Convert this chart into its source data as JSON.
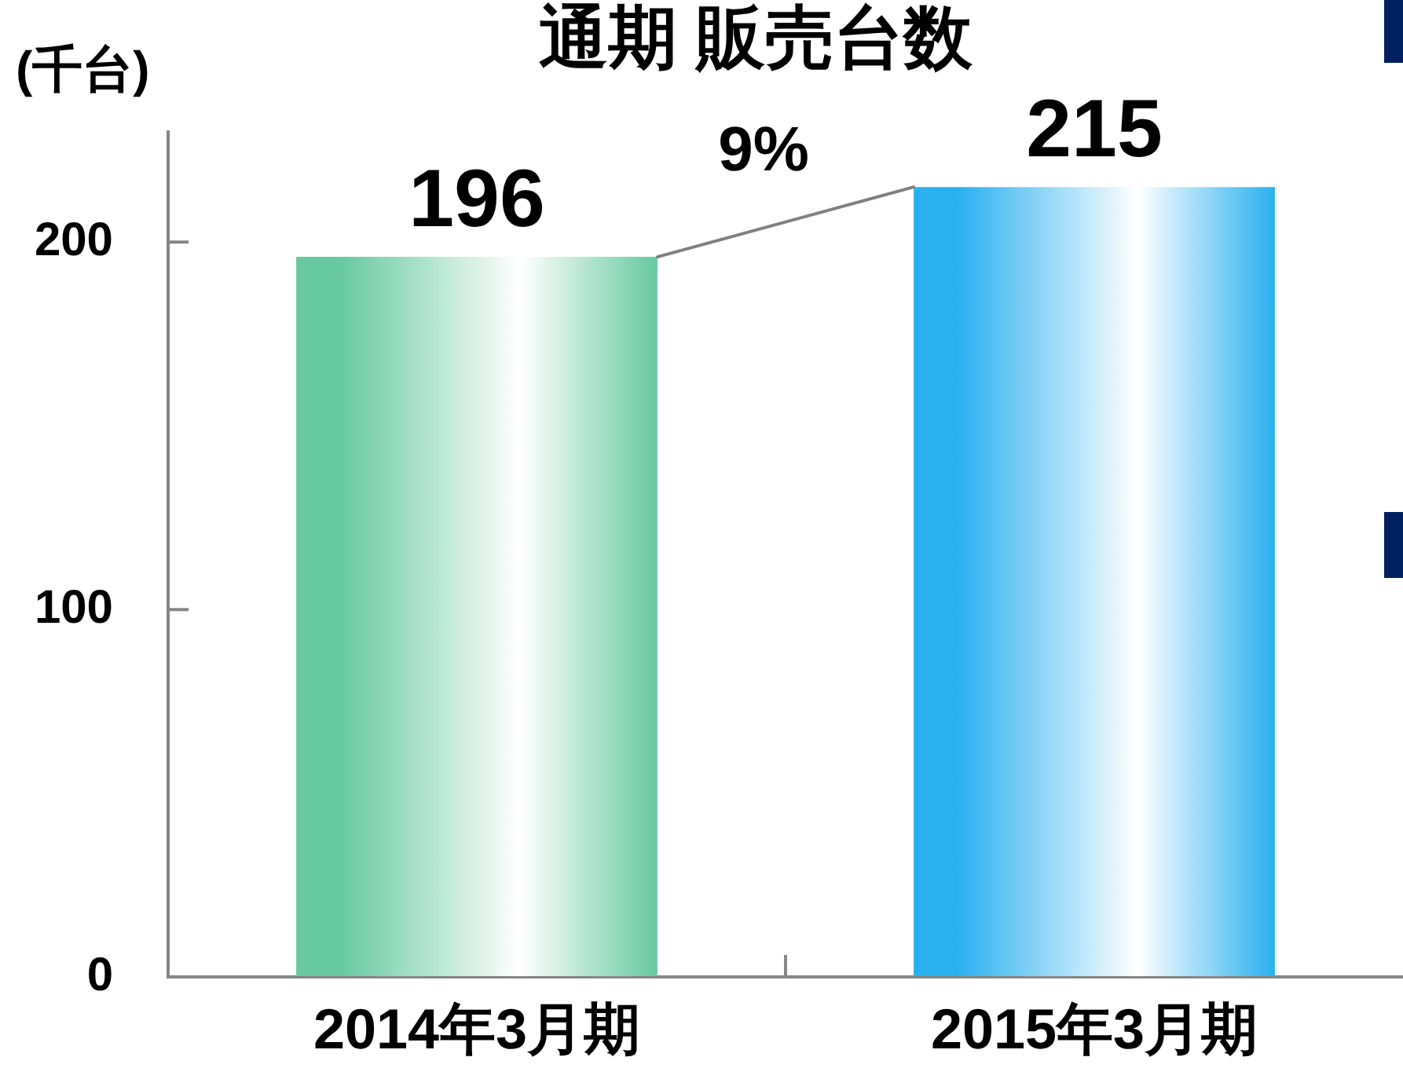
{
  "chart_data": {
    "type": "bar",
    "title": "通期 販売台数",
    "ylabel": "(千台)",
    "categories": [
      "2014年3月期",
      "2015年3月期"
    ],
    "values": [
      196,
      215
    ],
    "colors": [
      "#66c9a0",
      "#29b0ee"
    ],
    "ylim": [
      0,
      230
    ],
    "yticks": [
      0,
      100,
      200
    ],
    "grid": false,
    "legend": false,
    "data_labels": true,
    "annotations": [
      "9%"
    ]
  }
}
